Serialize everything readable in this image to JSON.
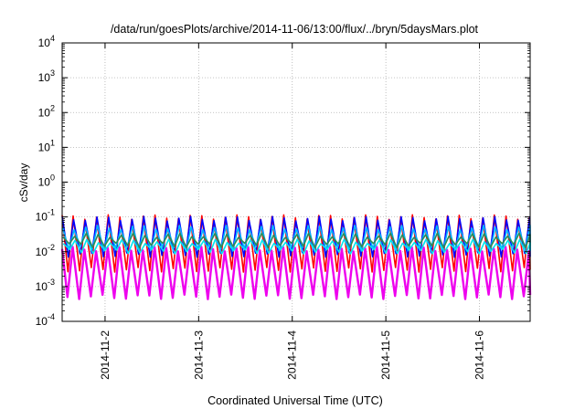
{
  "chart_data": {
    "type": "line",
    "title": "/data/run/goesPlots/archive/2014-11-06/13:00/flux/../bryn/5daysMars.plot",
    "xlabel": "Coordinated Universal Time (UTC)",
    "ylabel": "cSv/day",
    "y_scale": "log",
    "ylim": [
      0.0001,
      10000
    ],
    "xlim": [
      "2014-11-01 13:00",
      "2014-11-06 13:00"
    ],
    "grid": true,
    "y_ticks": [
      {
        "value": 0.0001,
        "base": "10",
        "exp": "-4"
      },
      {
        "value": 0.001,
        "base": "10",
        "exp": "-3"
      },
      {
        "value": 0.01,
        "base": "10",
        "exp": "-2"
      },
      {
        "value": 0.1,
        "base": "10",
        "exp": "-1"
      },
      {
        "value": 1,
        "base": "10",
        "exp": "0"
      },
      {
        "value": 10,
        "base": "10",
        "exp": "1"
      },
      {
        "value": 100,
        "base": "10",
        "exp": "2"
      },
      {
        "value": 1000,
        "base": "10",
        "exp": "3"
      },
      {
        "value": 10000,
        "base": "10",
        "exp": "4"
      }
    ],
    "x_ticks": [
      "2014-11-2",
      "2014-11-3",
      "2014-11-4",
      "2014-11-5",
      "2014-11-6"
    ],
    "oscillation": {
      "period_hours": 3,
      "peak_count": 40
    },
    "series": [
      {
        "color": "#ee00ee",
        "peak": 0.012,
        "trough": 0.0005
      },
      {
        "color": "#ff0000",
        "peak": 0.1,
        "trough": 0.003
      },
      {
        "color": "#0000ff",
        "peak": 0.09,
        "trough": 0.008
      },
      {
        "color": "#00b4ff",
        "peak": 0.05,
        "trough": 0.012
      },
      {
        "color": "#2e8b57",
        "peak": 0.03,
        "trough": 0.015
      },
      {
        "color": "#00e5ee",
        "peak": 0.02,
        "trough": 0.01
      }
    ]
  }
}
